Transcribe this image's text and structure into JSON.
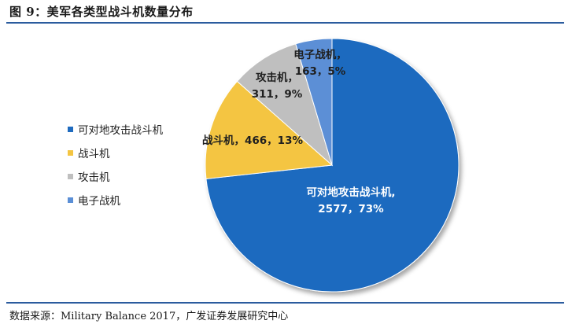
{
  "header": {
    "title": "图 9：美军各类型战斗机数量分布"
  },
  "footer": {
    "source": "数据来源：Military Balance 2017，广发证券发展研究中心"
  },
  "chart_data": {
    "type": "pie",
    "title": "",
    "slices": [
      {
        "name": "可对地攻击战斗机",
        "value": 2577,
        "percent": "73%",
        "color": "#1f6bbf",
        "label_line1": "可对地攻击战斗机,",
        "label_line2": "2577，73%",
        "label_color": "#ffffff"
      },
      {
        "name": "战斗机",
        "value": 466,
        "percent": "13%",
        "color": "#f4c542",
        "label_line1": "战斗机，466，13%",
        "label_line2": "",
        "label_color": "#1f1f1f"
      },
      {
        "name": "攻击机",
        "value": 311,
        "percent": "9%",
        "color": "#bfbfbf",
        "label_line1": "攻击机，",
        "label_line2": "311，9%",
        "label_color": "#1f1f1f"
      },
      {
        "name": "电子战机",
        "value": 163,
        "percent": "5%",
        "color": "#5b8fd6",
        "label_line1": "电子战机，",
        "label_line2": "163，5%",
        "label_color": "#1f1f1f"
      }
    ],
    "start_angle_deg": 0,
    "direction": "clockwise",
    "legend_position": "left"
  }
}
